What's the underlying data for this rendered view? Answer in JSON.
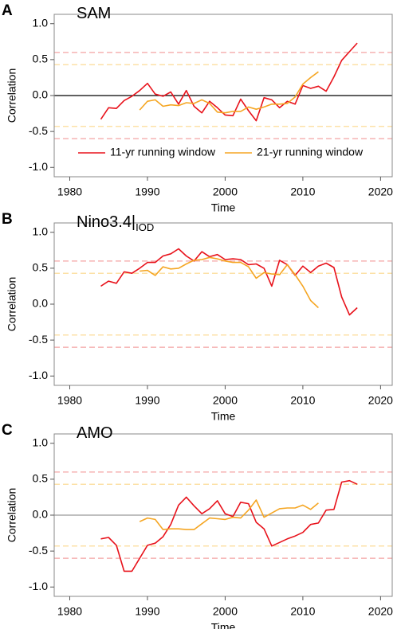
{
  "chart_data": [
    {
      "type": "line",
      "panel_label": "A",
      "title": "SAM",
      "xlabel": "Time",
      "ylabel": "Correlation",
      "xlim": [
        1978,
        2021.5
      ],
      "xticks": [
        1980,
        1990,
        2000,
        2010,
        2020
      ],
      "ylim": [
        -1.13,
        1.13
      ],
      "yticks": [
        {
          "value": 1.0,
          "label": "1.0"
        },
        0.5,
        {
          "value": 0.0,
          "label": "0.0"
        },
        -0.5,
        {
          "value": -1.0,
          "label": "-1.0"
        }
      ],
      "reference_lines": [
        {
          "value": 0.6,
          "color": "#f4a3a3",
          "dashed": true
        },
        {
          "value": 0.43,
          "color": "#fbd78a",
          "dashed": true
        },
        {
          "value": -0.43,
          "color": "#fbd78a",
          "dashed": true
        },
        {
          "value": -0.6,
          "color": "#f4a3a3",
          "dashed": true
        },
        {
          "value": 0,
          "color": "#000000",
          "dashed": false
        }
      ],
      "legend": true,
      "series": [
        {
          "name": "11-yr running window",
          "color": "#e8121b",
          "x": [
            1984,
            1985,
            1986,
            1987,
            1988,
            1989,
            1990,
            1991,
            1992,
            1993,
            1994,
            1995,
            1996,
            1997,
            1998,
            1999,
            2000,
            2001,
            2002,
            2003,
            2004,
            2005,
            2006,
            2007,
            2008,
            2009,
            2010,
            2011,
            2012,
            2013,
            2014,
            2015,
            2016,
            2017
          ],
          "values": [
            -0.33,
            -0.17,
            -0.18,
            -0.07,
            -0.01,
            0.07,
            0.17,
            0.02,
            -0.01,
            0.05,
            -0.12,
            0.07,
            -0.15,
            -0.24,
            -0.08,
            -0.17,
            -0.27,
            -0.28,
            -0.05,
            -0.21,
            -0.35,
            -0.03,
            -0.06,
            -0.17,
            -0.08,
            -0.12,
            0.14,
            0.1,
            0.13,
            0.06,
            0.26,
            0.49,
            0.61,
            0.73
          ]
        },
        {
          "name": "21-yr running window",
          "color": "#f5a623",
          "x": [
            1989,
            1990,
            1991,
            1992,
            1993,
            1994,
            1995,
            1996,
            1997,
            1998,
            1999,
            2000,
            2001,
            2002,
            2003,
            2004,
            2005,
            2006,
            2007,
            2008,
            2009,
            2010,
            2011,
            2012
          ],
          "values": [
            -0.2,
            -0.08,
            -0.06,
            -0.15,
            -0.13,
            -0.14,
            -0.1,
            -0.11,
            -0.06,
            -0.11,
            -0.23,
            -0.24,
            -0.22,
            -0.22,
            -0.16,
            -0.19,
            -0.16,
            -0.12,
            -0.12,
            -0.11,
            -0.02,
            0.16,
            0.25,
            0.33
          ]
        }
      ]
    },
    {
      "type": "line",
      "panel_label": "B",
      "title": "Nino3.4|",
      "title_subscript": "IOD",
      "xlabel": "Time",
      "ylabel": "Correlation",
      "xlim": [
        1978,
        2021.5
      ],
      "xticks": [
        1980,
        1990,
        2000,
        2010,
        2020
      ],
      "ylim": [
        -1.13,
        1.13
      ],
      "yticks": [
        {
          "value": 1.0,
          "label": "1.0"
        },
        0.5,
        {
          "value": 0.0,
          "label": "0.0"
        },
        -0.5,
        {
          "value": -1.0,
          "label": "-1.0"
        }
      ],
      "reference_lines": [
        {
          "value": 0.6,
          "color": "#f4a3a3",
          "dashed": true
        },
        {
          "value": 0.43,
          "color": "#fbd78a",
          "dashed": true
        },
        {
          "value": -0.43,
          "color": "#fbd78a",
          "dashed": true
        },
        {
          "value": -0.6,
          "color": "#f4a3a3",
          "dashed": true
        }
      ],
      "legend": false,
      "series": [
        {
          "color": "#e8121b",
          "x": [
            1984,
            1985,
            1986,
            1987,
            1988,
            1989,
            1990,
            1991,
            1992,
            1993,
            1994,
            1995,
            1996,
            1997,
            1998,
            1999,
            2000,
            2001,
            2002,
            2003,
            2004,
            2005,
            2006,
            2007,
            2008,
            2009,
            2010,
            2011,
            2012,
            2013,
            2014,
            2015,
            2016,
            2017
          ],
          "values": [
            0.25,
            0.32,
            0.29,
            0.45,
            0.43,
            0.5,
            0.58,
            0.58,
            0.67,
            0.7,
            0.77,
            0.67,
            0.6,
            0.73,
            0.66,
            0.69,
            0.62,
            0.63,
            0.62,
            0.55,
            0.56,
            0.5,
            0.25,
            0.61,
            0.55,
            0.4,
            0.53,
            0.44,
            0.53,
            0.57,
            0.51,
            0.1,
            -0.15,
            -0.05
          ]
        },
        {
          "color": "#f5a623",
          "x": [
            1989,
            1990,
            1991,
            1992,
            1993,
            1994,
            1995,
            1996,
            1997,
            1998,
            1999,
            2000,
            2001,
            2002,
            2003,
            2004,
            2005,
            2006,
            2007,
            2008,
            2009,
            2010,
            2011,
            2012
          ],
          "values": [
            0.46,
            0.47,
            0.4,
            0.52,
            0.49,
            0.5,
            0.56,
            0.61,
            0.62,
            0.65,
            0.63,
            0.6,
            0.58,
            0.58,
            0.52,
            0.36,
            0.44,
            0.42,
            0.41,
            0.55,
            0.41,
            0.25,
            0.05,
            -0.05
          ]
        }
      ]
    },
    {
      "type": "line",
      "panel_label": "C",
      "title": "AMO",
      "xlabel": "Time",
      "ylabel": "Correlation",
      "xlim": [
        1978,
        2021.5
      ],
      "xticks": [
        1980,
        1990,
        2000,
        2010,
        2020
      ],
      "ylim": [
        -1.13,
        1.13
      ],
      "yticks": [
        {
          "value": 1.0,
          "label": "1.0"
        },
        0.5,
        {
          "value": 0.0,
          "label": "0.0"
        },
        -0.5,
        {
          "value": -1.0,
          "label": "-1.0"
        }
      ],
      "reference_lines": [
        {
          "value": 0.6,
          "color": "#f4a3a3",
          "dashed": true
        },
        {
          "value": 0.43,
          "color": "#fbd78a",
          "dashed": true
        },
        {
          "value": -0.43,
          "color": "#fbd78a",
          "dashed": true
        },
        {
          "value": -0.6,
          "color": "#f4a3a3",
          "dashed": true
        },
        {
          "value": 0,
          "color": "#999999",
          "dashed": false
        }
      ],
      "legend": false,
      "series": [
        {
          "color": "#e8121b",
          "x": [
            1984,
            1985,
            1986,
            1987,
            1988,
            1989,
            1990,
            1991,
            1992,
            1993,
            1994,
            1995,
            1996,
            1997,
            1998,
            1999,
            2000,
            2001,
            2002,
            2003,
            2004,
            2005,
            2006,
            2007,
            2008,
            2009,
            2010,
            2011,
            2012,
            2013,
            2014,
            2015,
            2016,
            2017
          ],
          "values": [
            -0.33,
            -0.31,
            -0.42,
            -0.78,
            -0.78,
            -0.6,
            -0.42,
            -0.39,
            -0.3,
            -0.13,
            0.14,
            0.25,
            0.13,
            0.02,
            0.09,
            0.2,
            0.02,
            -0.02,
            0.18,
            0.16,
            -0.1,
            -0.19,
            -0.43,
            -0.38,
            -0.33,
            -0.29,
            -0.24,
            -0.13,
            -0.11,
            0.07,
            0.08,
            0.46,
            0.48,
            0.43
          ]
        },
        {
          "color": "#f5a623",
          "x": [
            1989,
            1990,
            1991,
            1992,
            1993,
            1994,
            1995,
            1996,
            1997,
            1998,
            1999,
            2000,
            2001,
            2002,
            2003,
            2004,
            2005,
            2006,
            2007,
            2008,
            2009,
            2010,
            2011,
            2012
          ],
          "values": [
            -0.09,
            -0.04,
            -0.06,
            -0.2,
            -0.19,
            -0.19,
            -0.2,
            -0.2,
            -0.12,
            -0.04,
            -0.05,
            -0.06,
            -0.03,
            -0.04,
            0.07,
            0.21,
            -0.03,
            0.03,
            0.09,
            0.1,
            0.1,
            0.14,
            0.08,
            0.17
          ]
        }
      ]
    }
  ]
}
